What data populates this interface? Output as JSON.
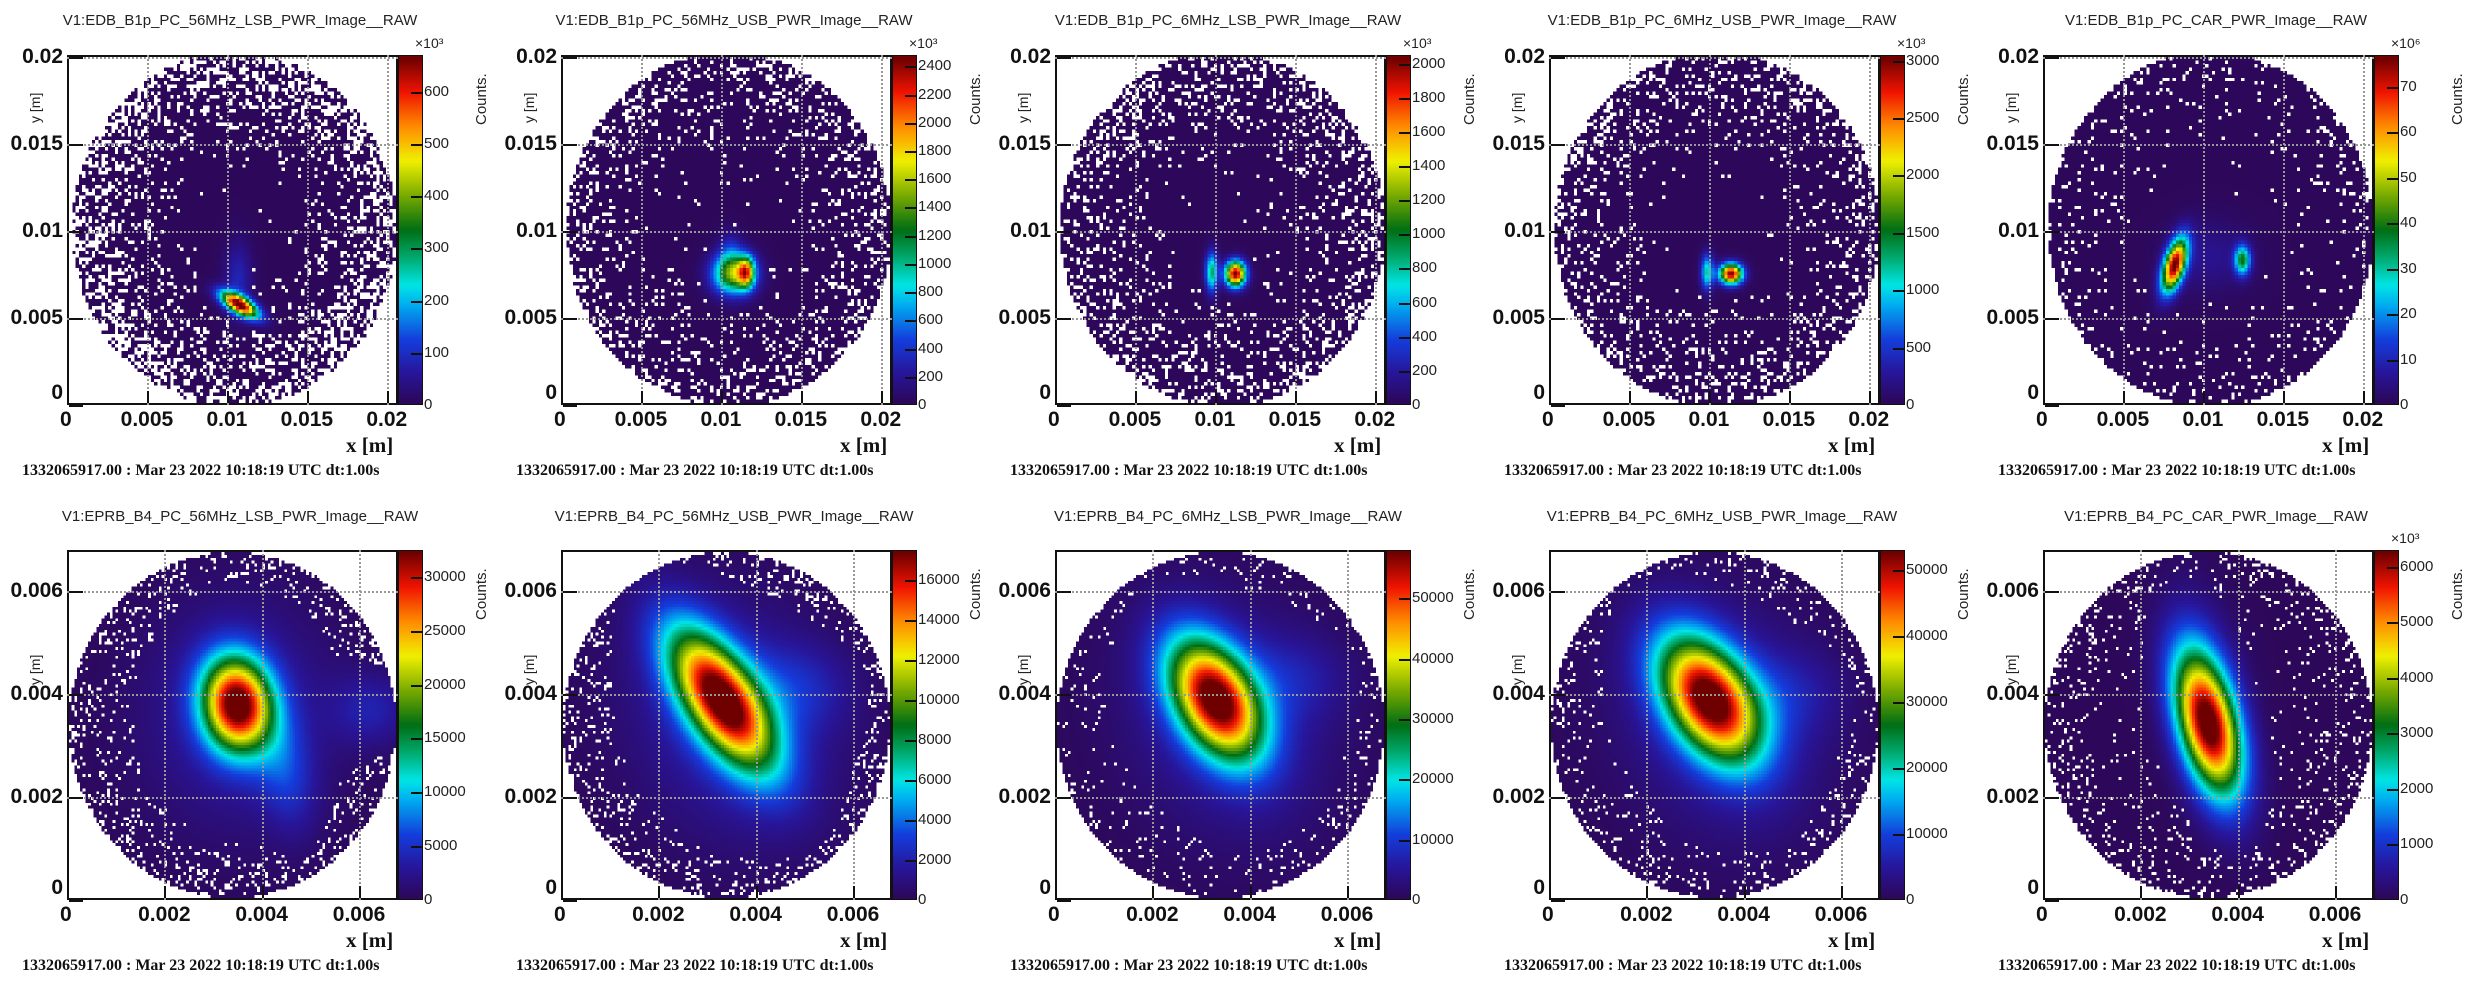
{
  "timestamp": "1332065917.00 : Mar 23 2022 10:18:19 UTC dt:1.00s",
  "x_axis_title": "x [m]",
  "y_axis_title": "y [m]",
  "z_axis_title": "Counts.",
  "chart_data": [
    {
      "type": "heatmap",
      "title": "V1:EDB_B1p_PC_56MHz_LSB_PWR_Image__RAW",
      "xlim": [
        0,
        0.0207
      ],
      "ylim": [
        0,
        0.0201
      ],
      "xticks": [
        0,
        0.005,
        0.01,
        0.015,
        0.02
      ],
      "xtick_labels": [
        "0",
        "0.005",
        "0.01",
        "0.015",
        "0.02"
      ],
      "yticks": [
        0,
        0.005,
        0.01,
        0.015,
        0.02
      ],
      "ytick_labels": [
        "0",
        "0.005",
        "0.01",
        "0.015",
        "0.02"
      ],
      "zmax": 670,
      "zticks": [
        100,
        200,
        300,
        400,
        500,
        600
      ],
      "ztick_labels": [
        "100",
        "200",
        "300",
        "400",
        "500",
        "600"
      ],
      "zmultiplier": "×10³",
      "detector": {
        "cx": 0.0105,
        "cy": 0.0101,
        "r": 0.0103
      },
      "peaks": [
        {
          "x": 0.0108,
          "y": 0.0057,
          "sx": 0.00035,
          "sy": 0.0009,
          "angle": -62,
          "amp": 1
        },
        {
          "x": 0.0107,
          "y": 0.0072,
          "sx": 0.0006,
          "sy": 0.0015,
          "angle": 0,
          "amp": 0.12
        }
      ]
    },
    {
      "type": "heatmap",
      "title": "V1:EDB_B1p_PC_56MHz_USB_PWR_Image__RAW",
      "xlim": [
        0,
        0.0207
      ],
      "ylim": [
        0,
        0.0201
      ],
      "xticks": [
        0,
        0.005,
        0.01,
        0.015,
        0.02
      ],
      "xtick_labels": [
        "0",
        "0.005",
        "0.01",
        "0.015",
        "0.02"
      ],
      "yticks": [
        0,
        0.005,
        0.01,
        0.015,
        0.02
      ],
      "ytick_labels": [
        "0",
        "0.005",
        "0.01",
        "0.015",
        "0.02"
      ],
      "zmax": 2480,
      "zticks": [
        200,
        400,
        600,
        800,
        1000,
        1200,
        1400,
        1600,
        1800,
        2000,
        2200,
        2400
      ],
      "ztick_labels": [
        "200",
        "400",
        "600",
        "800",
        "1000",
        "1200",
        "1400",
        "1600",
        "1800",
        "2000",
        "2200",
        "2400"
      ],
      "zmultiplier": "×10³",
      "detector": {
        "cx": 0.0105,
        "cy": 0.0101,
        "r": 0.0103
      },
      "peaks": [
        {
          "x": 0.0116,
          "y": 0.0076,
          "sx": 0.00035,
          "sy": 0.0006,
          "angle": 0,
          "amp": 0.55
        },
        {
          "x": 0.0108,
          "y": 0.0075,
          "sx": 0.0009,
          "sy": 0.0008,
          "angle": 0,
          "amp": 0.62
        },
        {
          "x": 0.0106,
          "y": 0.0088,
          "sx": 0.0005,
          "sy": 0.0008,
          "angle": 0,
          "amp": 0.12
        }
      ]
    },
    {
      "type": "heatmap",
      "title": "V1:EDB_B1p_PC_6MHz_LSB_PWR_Image__RAW",
      "xlim": [
        0,
        0.0207
      ],
      "ylim": [
        0,
        0.0201
      ],
      "xticks": [
        0,
        0.005,
        0.01,
        0.015,
        0.02
      ],
      "xtick_labels": [
        "0",
        "0.005",
        "0.01",
        "0.015",
        "0.02"
      ],
      "yticks": [
        0,
        0.005,
        0.01,
        0.015,
        0.02
      ],
      "ytick_labels": [
        "0",
        "0.005",
        "0.01",
        "0.015",
        "0.02"
      ],
      "zmax": 2050,
      "zticks": [
        200,
        400,
        600,
        800,
        1000,
        1200,
        1400,
        1600,
        1800,
        2000
      ],
      "ztick_labels": [
        "200",
        "400",
        "600",
        "800",
        "1000",
        "1200",
        "1400",
        "1600",
        "1800",
        "2000"
      ],
      "zmultiplier": "×10³",
      "detector": {
        "cx": 0.0105,
        "cy": 0.0101,
        "r": 0.0103
      },
      "peaks": [
        {
          "x": 0.0113,
          "y": 0.0075,
          "sx": 0.00045,
          "sy": 0.0005,
          "angle": 0,
          "amp": 1
        },
        {
          "x": 0.0098,
          "y": 0.0076,
          "sx": 0.00028,
          "sy": 0.0008,
          "angle": 0,
          "amp": 0.42
        }
      ]
    },
    {
      "type": "heatmap",
      "title": "V1:EDB_B1p_PC_6MHz_USB_PWR_Image__RAW",
      "xlim": [
        0,
        0.0207
      ],
      "ylim": [
        0,
        0.0201
      ],
      "xticks": [
        0,
        0.005,
        0.01,
        0.015,
        0.02
      ],
      "xtick_labels": [
        "0",
        "0.005",
        "0.01",
        "0.015",
        "0.02"
      ],
      "yticks": [
        0,
        0.005,
        0.01,
        0.015,
        0.02
      ],
      "ytick_labels": [
        "0",
        "0.005",
        "0.01",
        "0.015",
        "0.02"
      ],
      "zmax": 3050,
      "zticks": [
        500,
        1000,
        1500,
        2000,
        2500,
        3000
      ],
      "ztick_labels": [
        "500",
        "1000",
        "1500",
        "2000",
        "2500",
        "3000"
      ],
      "zmultiplier": "×10³",
      "detector": {
        "cx": 0.0105,
        "cy": 0.0101,
        "r": 0.0103
      },
      "peaks": [
        {
          "x": 0.0114,
          "y": 0.0075,
          "sx": 0.0005,
          "sy": 0.0004,
          "angle": 0,
          "amp": 1
        },
        {
          "x": 0.0099,
          "y": 0.0076,
          "sx": 0.00028,
          "sy": 0.0007,
          "angle": 0,
          "amp": 0.38
        }
      ]
    },
    {
      "type": "heatmap",
      "title": "V1:EDB_B1p_PC_CAR_PWR_Image__RAW",
      "xlim": [
        0,
        0.0207
      ],
      "ylim": [
        0,
        0.0201
      ],
      "xticks": [
        0,
        0.005,
        0.01,
        0.015,
        0.02
      ],
      "xtick_labels": [
        "0",
        "0.005",
        "0.01",
        "0.015",
        "0.02"
      ],
      "yticks": [
        0,
        0.005,
        0.01,
        0.015,
        0.02
      ],
      "ytick_labels": [
        "0",
        "0.005",
        "0.01",
        "0.015",
        "0.02"
      ],
      "zmax": 77,
      "zticks": [
        10,
        20,
        30,
        40,
        50,
        60,
        70
      ],
      "ztick_labels": [
        "10",
        "20",
        "30",
        "40",
        "50",
        "60",
        "70"
      ],
      "zmultiplier": "×10⁶",
      "detector": {
        "cx": 0.0105,
        "cy": 0.0101,
        "r": 0.0103
      },
      "peaks": [
        {
          "x": 0.0082,
          "y": 0.008,
          "sx": 0.00045,
          "sy": 0.0011,
          "angle": 18,
          "amp": 1
        },
        {
          "x": 0.0125,
          "y": 0.0083,
          "sx": 0.00035,
          "sy": 0.0006,
          "angle": 0,
          "amp": 0.48
        },
        {
          "x": 0.0104,
          "y": 0.0085,
          "sx": 0.0018,
          "sy": 0.0014,
          "angle": 0,
          "amp": 0.07
        }
      ]
    },
    {
      "type": "heatmap",
      "title": "V1:EPRB_B4_PC_56MHz_LSB_PWR_Image__RAW",
      "xlim": [
        0,
        0.0068
      ],
      "ylim": [
        0,
        0.0068
      ],
      "xticks": [
        0,
        0.002,
        0.004,
        0.006
      ],
      "xtick_labels": [
        "0",
        "0.002",
        "0.004",
        "0.006"
      ],
      "yticks": [
        0,
        0.002,
        0.004,
        0.006
      ],
      "ytick_labels": [
        "0",
        "0.002",
        "0.004",
        "0.006"
      ],
      "zmax": 32500,
      "zticks": [
        5000,
        10000,
        15000,
        20000,
        25000,
        30000
      ],
      "ztick_labels": [
        "5000",
        "10000",
        "15000",
        "20000",
        "25000",
        "30000"
      ],
      "zmultiplier": "",
      "detector": {
        "cx": 0.0034,
        "cy": 0.0034,
        "r": 0.0034
      },
      "peaks": [
        {
          "x": 0.0035,
          "y": 0.0038,
          "sx": 0.0005,
          "sy": 0.00065,
          "angle": -10,
          "amp": 1
        },
        {
          "x": 0.0035,
          "y": 0.0036,
          "sx": 0.0014,
          "sy": 0.0016,
          "angle": 0,
          "amp": 0.1
        },
        {
          "x": 0.0045,
          "y": 0.0025,
          "sx": 0.0008,
          "sy": 0.0004,
          "angle": 80,
          "amp": 0.13
        },
        {
          "x": 0.0063,
          "y": 0.0037,
          "sx": 0.0006,
          "sy": 0.0005,
          "angle": 0,
          "amp": 0.1
        }
      ]
    },
    {
      "type": "heatmap",
      "title": "V1:EPRB_B4_PC_56MHz_USB_PWR_Image__RAW",
      "xlim": [
        0,
        0.0068
      ],
      "ylim": [
        0,
        0.0068
      ],
      "xticks": [
        0,
        0.002,
        0.004,
        0.006
      ],
      "xtick_labels": [
        "0",
        "0.002",
        "0.004",
        "0.006"
      ],
      "yticks": [
        0,
        0.002,
        0.004,
        0.006
      ],
      "ytick_labels": [
        "0",
        "0.002",
        "0.004",
        "0.006"
      ],
      "zmax": 17500,
      "zticks": [
        2000,
        4000,
        6000,
        8000,
        10000,
        12000,
        14000,
        16000
      ],
      "ztick_labels": [
        "2000",
        "4000",
        "6000",
        "8000",
        "10000",
        "12000",
        "14000",
        "16000"
      ],
      "zmultiplier": "",
      "detector": {
        "cx": 0.0034,
        "cy": 0.0034,
        "r": 0.0034
      },
      "peaks": [
        {
          "x": 0.0033,
          "y": 0.0039,
          "sx": 0.0005,
          "sy": 0.0011,
          "angle": -35,
          "amp": 1
        },
        {
          "x": 0.0035,
          "y": 0.0035,
          "sx": 0.0014,
          "sy": 0.0017,
          "angle": -30,
          "amp": 0.12
        },
        {
          "x": 0.0048,
          "y": 0.0041,
          "sx": 0.0008,
          "sy": 0.0006,
          "angle": 0,
          "amp": 0.1
        }
      ]
    },
    {
      "type": "heatmap",
      "title": "V1:EPRB_B4_PC_6MHz_LSB_PWR_Image__RAW",
      "xlim": [
        0,
        0.0068
      ],
      "ylim": [
        0,
        0.0068
      ],
      "xticks": [
        0,
        0.002,
        0.004,
        0.006
      ],
      "xtick_labels": [
        "0",
        "0.002",
        "0.004",
        "0.006"
      ],
      "yticks": [
        0,
        0.002,
        0.004,
        0.006
      ],
      "ytick_labels": [
        "0",
        "0.002",
        "0.004",
        "0.006"
      ],
      "zmax": 58000,
      "zticks": [
        10000,
        20000,
        30000,
        40000,
        50000
      ],
      "ztick_labels": [
        "10000",
        "20000",
        "30000",
        "40000",
        "50000"
      ],
      "zmultiplier": "",
      "detector": {
        "cx": 0.0034,
        "cy": 0.0034,
        "r": 0.0034
      },
      "peaks": [
        {
          "x": 0.0033,
          "y": 0.0039,
          "sx": 0.00055,
          "sy": 0.0009,
          "angle": -32,
          "amp": 1
        },
        {
          "x": 0.0035,
          "y": 0.0035,
          "sx": 0.0014,
          "sy": 0.0017,
          "angle": -30,
          "amp": 0.1
        },
        {
          "x": 0.0049,
          "y": 0.0043,
          "sx": 0.0008,
          "sy": 0.0006,
          "angle": 0,
          "amp": 0.08
        }
      ]
    },
    {
      "type": "heatmap",
      "title": "V1:EPRB_B4_PC_6MHz_USB_PWR_Image__RAW",
      "xlim": [
        0,
        0.0068
      ],
      "ylim": [
        0,
        0.0068
      ],
      "xticks": [
        0,
        0.002,
        0.004,
        0.006
      ],
      "xtick_labels": [
        "0",
        "0.002",
        "0.004",
        "0.006"
      ],
      "yticks": [
        0,
        0.002,
        0.004,
        0.006
      ],
      "ytick_labels": [
        "0",
        "0.002",
        "0.004",
        "0.006"
      ],
      "zmax": 53000,
      "zticks": [
        10000,
        20000,
        30000,
        40000,
        50000
      ],
      "ztick_labels": [
        "10000",
        "20000",
        "30000",
        "40000",
        "50000"
      ],
      "zmultiplier": "",
      "detector": {
        "cx": 0.0034,
        "cy": 0.0034,
        "r": 0.0034
      },
      "peaks": [
        {
          "x": 0.0033,
          "y": 0.0039,
          "sx": 0.00058,
          "sy": 0.00095,
          "angle": -35,
          "amp": 1
        },
        {
          "x": 0.0035,
          "y": 0.0035,
          "sx": 0.0014,
          "sy": 0.0017,
          "angle": -30,
          "amp": 0.1
        },
        {
          "x": 0.0049,
          "y": 0.004,
          "sx": 0.0008,
          "sy": 0.0006,
          "angle": 0,
          "amp": 0.08
        }
      ]
    },
    {
      "type": "heatmap",
      "title": "V1:EPRB_B4_PC_CAR_PWR_Image__RAW",
      "xlim": [
        0,
        0.0068
      ],
      "ylim": [
        0,
        0.0068
      ],
      "xticks": [
        0,
        0.002,
        0.004,
        0.006
      ],
      "xtick_labels": [
        "0",
        "0.002",
        "0.004",
        "0.006"
      ],
      "yticks": [
        0,
        0.002,
        0.004,
        0.006
      ],
      "ytick_labels": [
        "0",
        "0.002",
        "0.004",
        "0.006"
      ],
      "zmax": 6300,
      "zticks": [
        1000,
        2000,
        3000,
        4000,
        5000,
        6000
      ],
      "ztick_labels": [
        "1000",
        "2000",
        "3000",
        "4000",
        "5000",
        "6000"
      ],
      "zmultiplier": "×10³",
      "detector": {
        "cx": 0.0034,
        "cy": 0.0034,
        "r": 0.0034
      },
      "peaks": [
        {
          "x": 0.0034,
          "y": 0.0034,
          "sx": 0.00042,
          "sy": 0.001,
          "angle": -15,
          "amp": 1
        },
        {
          "x": 0.0033,
          "y": 0.0042,
          "sx": 0.0005,
          "sy": 0.0012,
          "angle": -10,
          "amp": 0.1
        }
      ]
    }
  ]
}
